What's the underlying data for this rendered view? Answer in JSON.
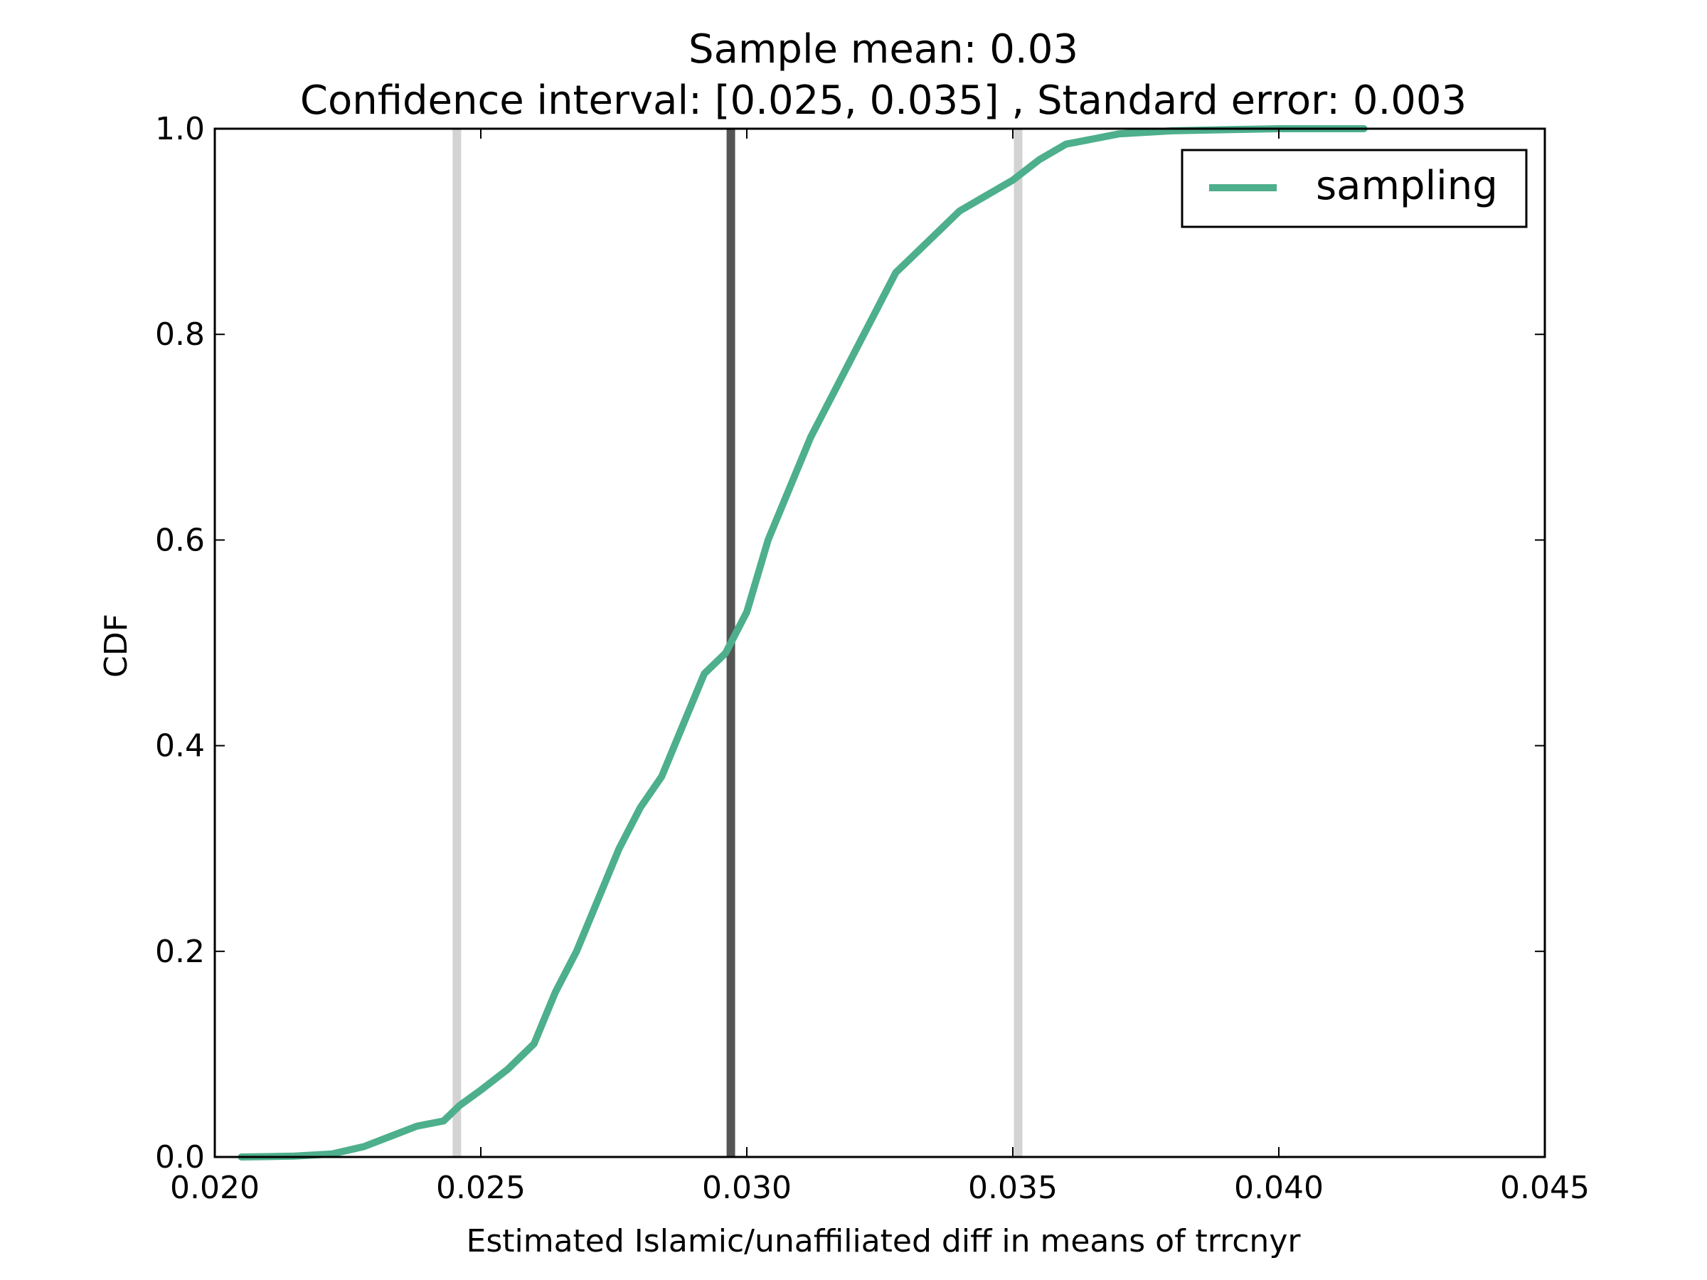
{
  "chart_data": {
    "type": "line",
    "title": "Sample mean: 0.03",
    "subtitle": "Confidence interval: [0.025, 0.035] , Standard error: 0.003",
    "xlabel": "Estimated Islamic/unaffiliated diff in means of trrcnyr",
    "ylabel": "CDF",
    "xlim": [
      0.02,
      0.045
    ],
    "ylim": [
      0.0,
      1.0
    ],
    "x_ticks": [
      "0.020",
      "0.025",
      "0.030",
      "0.035",
      "0.040",
      "0.045"
    ],
    "y_ticks": [
      "0.0",
      "0.2",
      "0.4",
      "0.6",
      "0.8",
      "1.0"
    ],
    "grid": false,
    "legend": {
      "position": "top-right"
    },
    "colors": {
      "series": "#4daf8c",
      "mean_line": "#555555",
      "ci_line": "#d3d3d3"
    },
    "reference_lines": {
      "mean": 0.0297,
      "ci_low": 0.02455,
      "ci_high": 0.0351
    },
    "series": [
      {
        "name": "sampling",
        "x": [
          0.0205,
          0.0215,
          0.0222,
          0.0228,
          0.0233,
          0.0238,
          0.0243,
          0.0246,
          0.025,
          0.0255,
          0.026,
          0.0264,
          0.0268,
          0.0272,
          0.0276,
          0.028,
          0.0284,
          0.0288,
          0.0292,
          0.0296,
          0.03,
          0.0304,
          0.0308,
          0.0312,
          0.0316,
          0.032,
          0.0324,
          0.0328,
          0.0332,
          0.0336,
          0.034,
          0.0345,
          0.035,
          0.0355,
          0.036,
          0.0365,
          0.037,
          0.038,
          0.039,
          0.04,
          0.0416
        ],
        "y": [
          0.0,
          0.0008,
          0.003,
          0.01,
          0.02,
          0.03,
          0.035,
          0.05,
          0.065,
          0.085,
          0.11,
          0.16,
          0.2,
          0.25,
          0.3,
          0.34,
          0.37,
          0.42,
          0.47,
          0.49,
          0.53,
          0.6,
          0.65,
          0.7,
          0.74,
          0.78,
          0.82,
          0.86,
          0.88,
          0.9,
          0.92,
          0.935,
          0.95,
          0.97,
          0.985,
          0.99,
          0.995,
          0.998,
          0.999,
          1.0,
          1.0
        ]
      }
    ]
  }
}
